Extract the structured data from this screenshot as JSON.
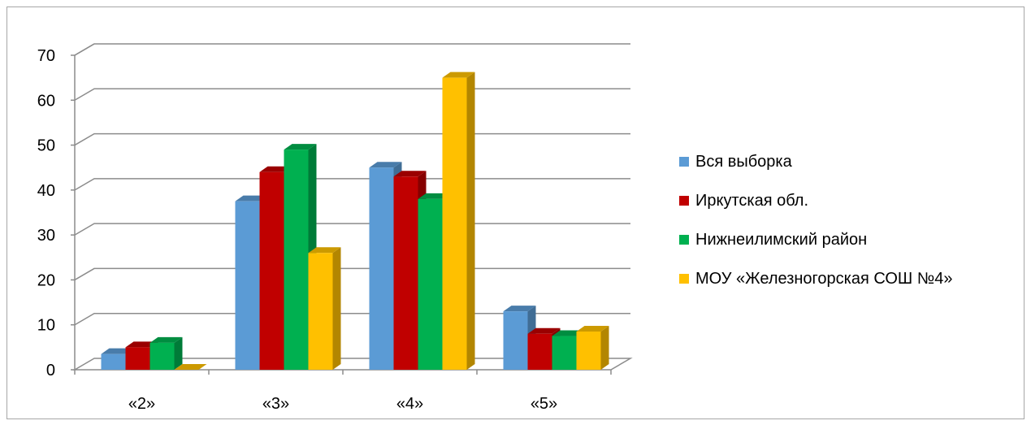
{
  "chart_data": {
    "type": "bar",
    "categories": [
      "«2»",
      "«3»",
      "«4»",
      "«5»"
    ],
    "series": [
      {
        "name": "Вся выборка",
        "values": [
          3.5,
          37.5,
          45,
          13
        ],
        "color": "#5b9bd5"
      },
      {
        "name": "Иркутская обл.",
        "values": [
          5,
          44,
          43,
          8
        ],
        "color": "#c00000"
      },
      {
        "name": "Нижнеилимский район",
        "values": [
          6,
          49,
          38,
          7.5
        ],
        "color": "#00b050"
      },
      {
        "name": "МОУ «Железногорская СОШ №4»",
        "values": [
          0,
          26,
          65,
          8.5
        ],
        "color": "#ffc000"
      }
    ],
    "y_ticks": [
      "0",
      "10",
      "20",
      "30",
      "40",
      "50",
      "60",
      "70"
    ],
    "ylim": [
      0,
      70
    ],
    "grid": true,
    "legend_position": "right",
    "three_d": true
  }
}
